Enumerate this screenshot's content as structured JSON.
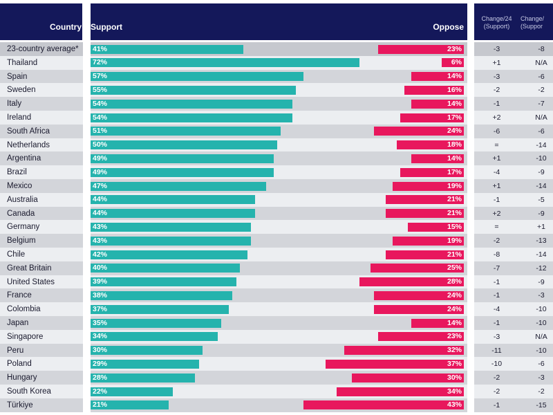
{
  "header": {
    "country": "Country",
    "support": "Support",
    "oppose": "Oppose",
    "change24_line1": "Change/24",
    "change24_line2": "(Support)",
    "change2_line1": "Change/",
    "change2_line2": "(Suppor"
  },
  "colors": {
    "header": "#14185a",
    "support": "#25b3ad",
    "oppose": "#e8175d",
    "row_light": "#eceef1",
    "row_dark": "#d3d5da",
    "row_first": "#c6c8ce"
  },
  "chart_data": {
    "type": "bar",
    "categories": [
      "23-country average*",
      "Thailand",
      "Spain",
      "Sweden",
      "Italy",
      "Ireland",
      "South Africa",
      "Netherlands",
      "Argentina",
      "Brazil",
      "Mexico",
      "Australia",
      "Canada",
      "Germany",
      "Belgium",
      "Chile",
      "Great Britain",
      "United States",
      "France",
      "Colombia",
      "Japan",
      "Singapore",
      "Peru",
      "Poland",
      "Hungary",
      "South Korea",
      "Türkiye"
    ],
    "series": [
      {
        "name": "Support",
        "values": [
          41,
          72,
          57,
          55,
          54,
          54,
          51,
          50,
          49,
          49,
          47,
          44,
          44,
          43,
          43,
          42,
          40,
          39,
          38,
          37,
          35,
          34,
          30,
          29,
          28,
          22,
          21
        ]
      },
      {
        "name": "Oppose",
        "values": [
          23,
          6,
          14,
          16,
          14,
          17,
          24,
          18,
          14,
          17,
          19,
          21,
          21,
          15,
          19,
          21,
          25,
          28,
          24,
          24,
          14,
          23,
          32,
          37,
          30,
          34,
          43
        ]
      }
    ],
    "change24_support": [
      "-3",
      "+1",
      "-3",
      "-2",
      "-1",
      "+2",
      "-6",
      "=",
      "+1",
      "-4",
      "+1",
      "-1",
      "+2",
      "=",
      "-2",
      "-8",
      "-7",
      "-1",
      "-1",
      "-4",
      "-1",
      "-3",
      "-11",
      "-10",
      "-2",
      "-2",
      "-1"
    ],
    "change2_support": [
      "-8",
      "N/A",
      "-6",
      "-2",
      "-7",
      "N/A",
      "-6",
      "-14",
      "-10",
      "-9",
      "-14",
      "-5",
      "-9",
      "+1",
      "-13",
      "-14",
      "-12",
      "-9",
      "-3",
      "-10",
      "-10",
      "N/A",
      "-10",
      "-6",
      "-3",
      "-2",
      "-15"
    ],
    "value_suffix": "%"
  }
}
